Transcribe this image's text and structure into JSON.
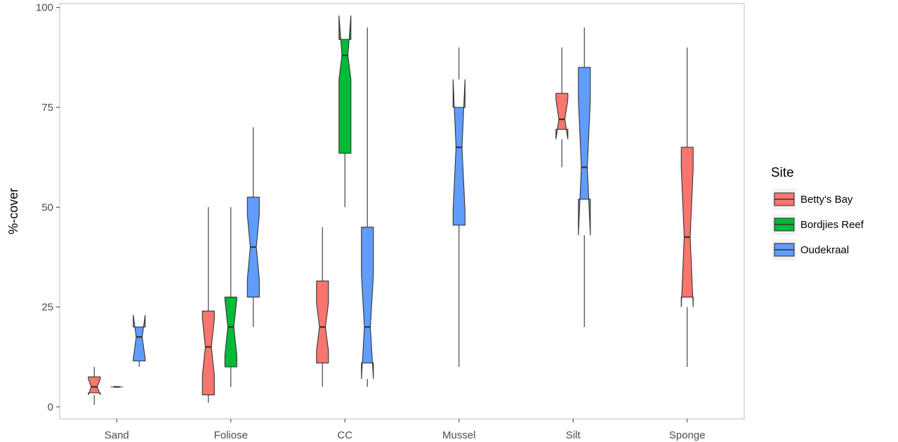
{
  "chart_data": {
    "type": "boxplot",
    "notched": true,
    "xlabel": "",
    "ylabel": "%-cover",
    "ylim": [
      -3,
      101
    ],
    "yticks": [
      0,
      25,
      50,
      75,
      100
    ],
    "grid": false,
    "categories": [
      "Sand",
      "Foliose",
      "CC",
      "Mussel",
      "Silt",
      "Sponge"
    ],
    "legend": {
      "title": "Site",
      "placement": "right",
      "entries": [
        "Betty's Bay",
        "Bordjies Reef",
        "Oudekraal"
      ]
    },
    "colors": {
      "Betty's Bay": "#f8766d",
      "Bordjies Reef": "#00ba38",
      "Oudekraal": "#619cff",
      "outline": "#333333",
      "panel_border": "#c8c8c8"
    },
    "boxes": [
      {
        "category": "Sand",
        "site": "Betty's Bay",
        "min": 0.5,
        "q1": 3.5,
        "median": 5,
        "q3": 7.5,
        "max": 10,
        "notch_lo": 3,
        "notch_hi": 7
      },
      {
        "category": "Sand",
        "site": "Bordjies Reef",
        "min": 5,
        "q1": 5,
        "median": 5,
        "q3": 5,
        "max": 5,
        "notch_lo": 5,
        "notch_hi": 5
      },
      {
        "category": "Sand",
        "site": "Oudekraal",
        "min": 10,
        "q1": 11.5,
        "median": 17.5,
        "q3": 20,
        "max": 23,
        "notch_lo": 12,
        "notch_hi": 23
      },
      {
        "category": "Foliose",
        "site": "Betty's Bay",
        "min": 1,
        "q1": 3,
        "median": 15,
        "q3": 24,
        "max": 50,
        "notch_lo": 8,
        "notch_hi": 22
      },
      {
        "category": "Foliose",
        "site": "Bordjies Reef",
        "min": 5,
        "q1": 10,
        "median": 20,
        "q3": 27.5,
        "max": 50,
        "notch_lo": 13,
        "notch_hi": 27
      },
      {
        "category": "Foliose",
        "site": "Oudekraal",
        "min": 20,
        "q1": 27.5,
        "median": 40,
        "q3": 52.5,
        "max": 70,
        "notch_lo": 32,
        "notch_hi": 48
      },
      {
        "category": "CC",
        "site": "Betty's Bay",
        "min": 5,
        "q1": 11,
        "median": 20,
        "q3": 31.5,
        "max": 45,
        "notch_lo": 14,
        "notch_hi": 26
      },
      {
        "category": "CC",
        "site": "Bordjies Reef",
        "min": 50,
        "q1": 63.5,
        "median": 88,
        "q3": 92,
        "max": 98,
        "notch_lo": 82,
        "notch_hi": 98
      },
      {
        "category": "CC",
        "site": "Oudekraal",
        "min": 5,
        "q1": 11,
        "median": 20,
        "q3": 45,
        "max": 95,
        "notch_lo": 7,
        "notch_hi": 33
      },
      {
        "category": "Mussel",
        "site": "Oudekraal",
        "min": 10,
        "q1": 45.5,
        "median": 65,
        "q3": 75,
        "max": 90,
        "notch_lo": 49,
        "notch_hi": 82
      },
      {
        "category": "Silt",
        "site": "Betty's Bay",
        "min": 60,
        "q1": 69.5,
        "median": 72,
        "q3": 78.5,
        "max": 90,
        "notch_lo": 67,
        "notch_hi": 77
      },
      {
        "category": "Silt",
        "site": "Oudekraal",
        "min": 20,
        "q1": 52,
        "median": 60,
        "q3": 85,
        "max": 95,
        "notch_lo": 43,
        "notch_hi": 77
      },
      {
        "category": "Sponge",
        "site": "Betty's Bay",
        "min": 10,
        "q1": 27.5,
        "median": 42.5,
        "q3": 65,
        "max": 90,
        "notch_lo": 25,
        "notch_hi": 60
      }
    ]
  }
}
